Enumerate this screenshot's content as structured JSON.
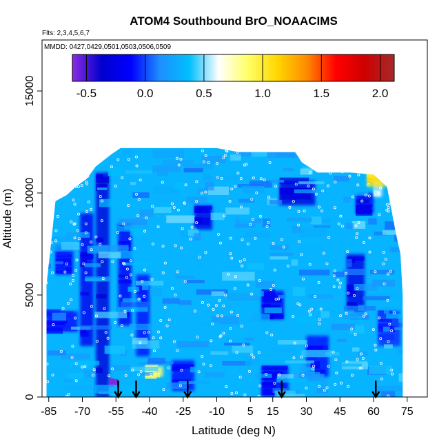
{
  "chart_data": {
    "type": "heatmap",
    "title": "ATOM4 Southbound BrO_NOAACIMS",
    "annotations": {
      "flights": "Flts: 2,3,4,5,6,7",
      "dates": "MMDD: 0427,0429,0501,0503,0506,0509"
    },
    "xlabel": "Latitude (deg N)",
    "ylabel": "Altitude (m)",
    "xlim": [
      -88,
      84
    ],
    "ylim": [
      0,
      17500
    ],
    "x_ticks": [
      -85,
      -70,
      -55,
      -40,
      -25,
      -10,
      5,
      15,
      30,
      45,
      60,
      75
    ],
    "y_ticks": [
      0,
      5000,
      10000,
      15000
    ],
    "colorbar": {
      "range": [
        -0.62,
        2.12
      ],
      "ticks": [
        -0.5,
        0.0,
        0.5,
        1.0,
        1.5,
        2.0
      ],
      "tick_labels": [
        "-0.5",
        "0.0",
        "0.5",
        "1.0",
        "1.5",
        "2.0"
      ],
      "colors": [
        "#8b2be2",
        "#0000cd",
        "#0000ff",
        "#1e90ff",
        "#00bfff",
        "#ffffff",
        "#ffff66",
        "#ffd700",
        "#ff8c00",
        "#ff0000",
        "#cd0000",
        "#a52a2a"
      ]
    },
    "background_value": 0.32,
    "field_extent": {
      "columns": [
        {
          "x": -86,
          "top": 5500
        },
        {
          "x": -85,
          "top": 6500
        },
        {
          "x": -84,
          "top": 7500
        },
        {
          "x": -82,
          "top": 9600
        },
        {
          "x": -77,
          "top": 9900
        },
        {
          "x": -73,
          "top": 10300
        },
        {
          "x": -68,
          "top": 10700
        },
        {
          "x": -64,
          "top": 11300
        },
        {
          "x": -57,
          "top": 11900
        },
        {
          "x": -53,
          "top": 12200
        },
        {
          "x": -45,
          "top": 12200
        },
        {
          "x": -37,
          "top": 12200
        },
        {
          "x": -25,
          "top": 12200
        },
        {
          "x": -10,
          "top": 12200
        },
        {
          "x": 0,
          "top": 12000
        },
        {
          "x": 15,
          "top": 12000
        },
        {
          "x": 25,
          "top": 12000
        },
        {
          "x": 28,
          "top": 11500
        },
        {
          "x": 35,
          "top": 11000
        },
        {
          "x": 50,
          "top": 11000
        },
        {
          "x": 60,
          "top": 10900
        },
        {
          "x": 66,
          "top": 10300
        },
        {
          "x": 70,
          "top": 8000
        },
        {
          "x": 72,
          "top": 7000
        },
        {
          "x": 73,
          "top": 5000
        },
        {
          "x": 73,
          "top": 0
        }
      ],
      "bottom": 0
    },
    "features": [
      {
        "x": [
          -64,
          -58
        ],
        "y": [
          0,
          11000
        ],
        "value": -0.3
      },
      {
        "x": [
          -71,
          -65
        ],
        "y": [
          2500,
          9000
        ],
        "value": -0.2
      },
      {
        "x": [
          -54,
          -48
        ],
        "y": [
          3500,
          8500
        ],
        "value": -0.15
      },
      {
        "x": [
          -46,
          -40
        ],
        "y": [
          2000,
          6000
        ],
        "value": -0.1
      },
      {
        "x": [
          -20,
          -12
        ],
        "y": [
          8200,
          9400
        ],
        "value": -0.25
      },
      {
        "x": [
          10,
          20
        ],
        "y": [
          3800,
          5200
        ],
        "value": -0.2
      },
      {
        "x": [
          18,
          34
        ],
        "y": [
          9400,
          10600
        ],
        "value": -0.3
      },
      {
        "x": [
          -30,
          -20
        ],
        "y": [
          300,
          1800
        ],
        "value": -0.1
      },
      {
        "x": [
          10,
          22
        ],
        "y": [
          0,
          1500
        ],
        "value": -0.15
      },
      {
        "x": [
          48,
          56
        ],
        "y": [
          4200,
          7000
        ],
        "value": -0.25
      },
      {
        "x": [
          52,
          60
        ],
        "y": [
          9000,
          10000
        ],
        "value": -0.2
      },
      {
        "x": [
          60,
          64
        ],
        "y": [
          9800,
          10800
        ],
        "value": 0.55
      },
      {
        "x": [
          57,
          66
        ],
        "y": [
          10300,
          11200
        ],
        "value": 1.05
      },
      {
        "x": [
          -86,
          -72
        ],
        "y": [
          3200,
          4200
        ],
        "value": -0.1
      },
      {
        "x": [
          -82,
          -74
        ],
        "y": [
          6000,
          7400
        ],
        "value": -0.1
      },
      {
        "x": [
          -42,
          -34
        ],
        "y": [
          1000,
          1500
        ],
        "value": 0.85
      },
      {
        "x": [
          -58,
          -54
        ],
        "y": [
          500,
          800
        ],
        "value": -0.62
      },
      {
        "x": [
          30,
          40
        ],
        "y": [
          1000,
          3000
        ],
        "value": -0.1
      },
      {
        "x": [
          62,
          72
        ],
        "y": [
          2500,
          4200
        ],
        "value": -0.05
      }
    ],
    "arrows_latitude": [
      -54,
      -46,
      -23,
      19,
      61
    ],
    "arrows_altitude_range": [
      0,
      800
    ]
  }
}
